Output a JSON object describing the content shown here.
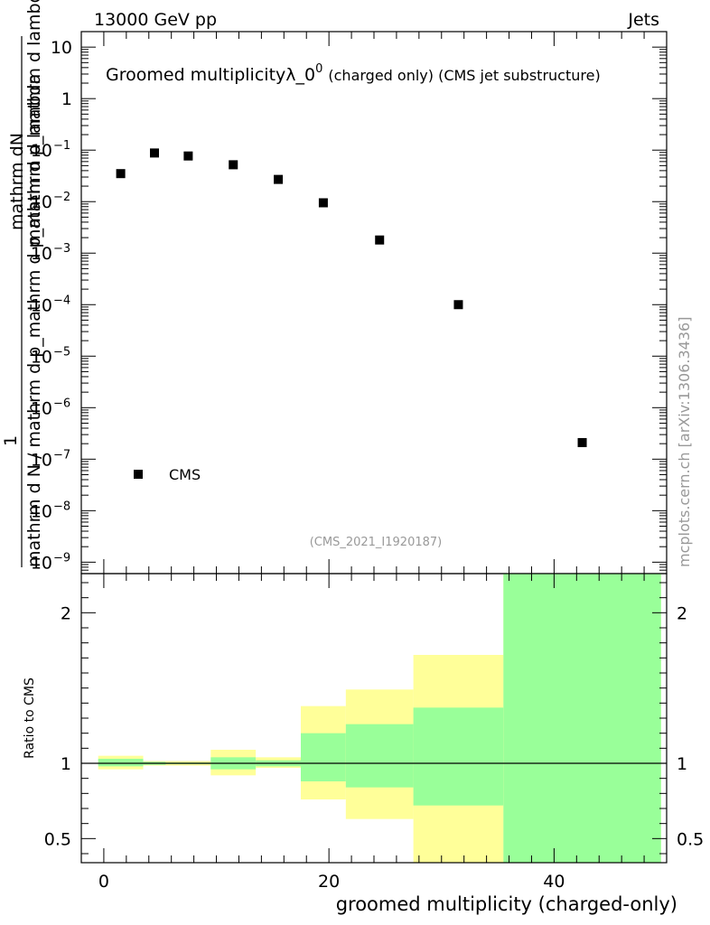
{
  "header": {
    "energy_label": "13000 GeV pp",
    "category_label": "Jets"
  },
  "watermark": {
    "analysis_id": "(CMS_2021_I1920187)",
    "site_credit": "mcplots.cern.ch [arXiv:1306.3436]"
  },
  "colors": {
    "stat_band": "#99ff99",
    "total_band": "#ffff99",
    "marker": "#000000"
  },
  "chart_data": [
    {
      "type": "scatter",
      "y_scale": "log",
      "title_prefix": "Groomed multiplicity",
      "title_lambda": "λ_0",
      "title_sup": "0",
      "title_suffix": "(charged only) (CMS jet substructure)",
      "ylabel_top": "1",
      "ylabel_numer": "mathrm d N",
      "ylabel_denom": "mathrm d N / mathrm d p_mathrm d p_mathrm d lambda",
      "ylabel_side": "mathrm dN",
      "ylabel_side2": "mathrm d p_mathrm d lambda",
      "ylim": [
        6e-10,
        20
      ],
      "xlim": [
        -2,
        50
      ],
      "y_ticks": [
        {
          "v": 10,
          "label": "10"
        },
        {
          "v": 1,
          "label": "1"
        },
        {
          "v": 0.1,
          "base": "10",
          "exp": "−1"
        },
        {
          "v": 0.01,
          "base": "10",
          "exp": "−2"
        },
        {
          "v": 0.001,
          "base": "10",
          "exp": "−3"
        },
        {
          "v": 0.0001,
          "base": "10",
          "exp": "−4"
        },
        {
          "v": 1e-05,
          "base": "10",
          "exp": "−5"
        },
        {
          "v": 1e-06,
          "base": "10",
          "exp": "−6"
        },
        {
          "v": 1e-07,
          "base": "10",
          "exp": "−7"
        },
        {
          "v": 1e-08,
          "base": "10",
          "exp": "−8"
        },
        {
          "v": 1e-09,
          "base": "10",
          "exp": "−9"
        }
      ],
      "series": [
        {
          "name": "CMS",
          "x": [
            1.5,
            4.5,
            7.5,
            11.5,
            15.5,
            19.5,
            24.5,
            31.5,
            42.5
          ],
          "y": [
            0.035,
            0.088,
            0.077,
            0.052,
            0.027,
            0.0095,
            0.0018,
            0.0001,
            2.1e-07
          ]
        }
      ],
      "legend": {
        "label": "CMS",
        "position": "bottom-left"
      }
    },
    {
      "type": "area",
      "ylabel": "Ratio to CMS",
      "xlabel": "groomed multiplicity (charged-only)",
      "ylim": [
        0.34,
        2.26
      ],
      "xlim": [
        -2,
        50
      ],
      "y_ticks": [
        2,
        1,
        0.5
      ],
      "y_tick_labels": [
        "2",
        "1",
        "0.5"
      ],
      "x_ticks": [
        0,
        20,
        40
      ],
      "x_tick_labels": [
        "0",
        "20",
        "40"
      ],
      "reference_line": 1,
      "bins": [
        {
          "lo": -0.5,
          "hi": 3.5,
          "stat": [
            0.98,
            1.03
          ],
          "total": [
            0.96,
            1.05
          ]
        },
        {
          "lo": 3.5,
          "hi": 5.5,
          "stat": [
            0.99,
            1.01
          ],
          "total": [
            0.985,
            1.015
          ]
        },
        {
          "lo": 5.5,
          "hi": 9.5,
          "stat": [
            0.995,
            1.005
          ],
          "total": [
            0.985,
            1.015
          ]
        },
        {
          "lo": 9.5,
          "hi": 13.5,
          "stat": [
            0.96,
            1.04
          ],
          "total": [
            0.92,
            1.09
          ]
        },
        {
          "lo": 13.5,
          "hi": 17.5,
          "stat": [
            0.98,
            1.02
          ],
          "total": [
            0.97,
            1.04
          ]
        },
        {
          "lo": 17.5,
          "hi": 21.5,
          "stat": [
            0.88,
            1.2
          ],
          "total": [
            0.76,
            1.38
          ]
        },
        {
          "lo": 21.5,
          "hi": 27.5,
          "stat": [
            0.84,
            1.26
          ],
          "total": [
            0.63,
            1.49
          ]
        },
        {
          "lo": 27.5,
          "hi": 35.5,
          "stat": [
            0.72,
            1.37
          ],
          "total": [
            0.34,
            1.72
          ]
        },
        {
          "lo": 35.5,
          "hi": 49.5,
          "stat": [
            0.34,
            2.26
          ],
          "total": [
            0.34,
            2.26
          ]
        }
      ]
    }
  ]
}
